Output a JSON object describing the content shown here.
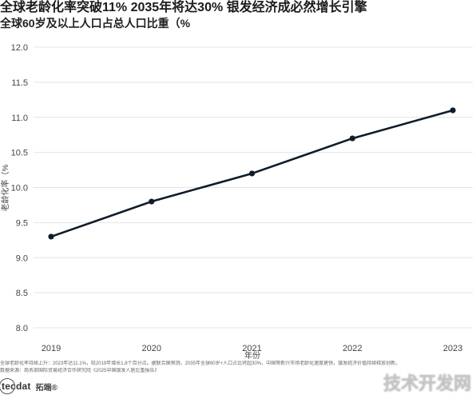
{
  "title": "全球老龄化率突破11%  2035年将达30%  银发经济成必然增长引擎",
  "subtitle": "全球60岁及以上人口占总人口比重（%",
  "chart_data": {
    "type": "line",
    "x": [
      "2019",
      "2020",
      "2021",
      "2022",
      "2023"
    ],
    "series": [
      {
        "values": [
          9.3,
          9.8,
          10.2,
          10.7,
          11.1
        ]
      }
    ],
    "xlabel": "年份",
    "ylabel": "老龄化率（%",
    "ylim": [
      8.0,
      12.0
    ],
    "yticks": [
      "8.0",
      "8.5",
      "9.0",
      "9.5",
      "10.0",
      "10.5",
      "11.0",
      "11.5",
      "12.0"
    ],
    "grid": true,
    "line_color": "#0e1c2b"
  },
  "caption": {
    "note": "全球老龄化率持续上升：2023年达11.1%，较2019年增长1.8个百分点。据联合国预测，2035年全球60岁+人口占比将超30%，中国等新兴市场老龄化速度更快，银发经济价值持续释放创新。",
    "source": "数据来源：商务部国际贸易经济合作研究院《2025中国银发人居比重报告》"
  },
  "logo": {
    "mark": "tecdat",
    "name": "拓端®"
  },
  "watermark": "技术开发网"
}
